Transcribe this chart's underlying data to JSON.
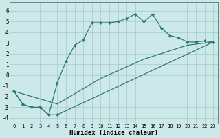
{
  "xlabel": "Humidex (Indice chaleur)",
  "xlim": [
    -0.5,
    23.5
  ],
  "ylim": [
    -4.5,
    6.8
  ],
  "xticks": [
    0,
    1,
    2,
    3,
    4,
    5,
    6,
    7,
    8,
    9,
    10,
    11,
    12,
    13,
    14,
    15,
    16,
    17,
    18,
    19,
    20,
    21,
    22,
    23
  ],
  "yticks": [
    -4,
    -3,
    -2,
    -1,
    0,
    1,
    2,
    3,
    4,
    5,
    6
  ],
  "line_color": "#2a7b6f",
  "bg_color": "#cce8e8",
  "grid_color": "#aacece",
  "line1_x": [
    0,
    1,
    2,
    3,
    4,
    5,
    6,
    7,
    8,
    9,
    10,
    11,
    12,
    13,
    14,
    15,
    16,
    17,
    18,
    19,
    20,
    21,
    22,
    23
  ],
  "line1_y": [
    -1.5,
    -2.7,
    -3.0,
    -3.0,
    -3.7,
    -0.7,
    1.3,
    2.8,
    3.3,
    4.9,
    4.9,
    4.9,
    5.0,
    5.3,
    5.7,
    5.0,
    5.7,
    4.4,
    3.7,
    3.5,
    3.1,
    3.1,
    3.2,
    3.1
  ],
  "line2_x": [
    0,
    5,
    10,
    15,
    20,
    23
  ],
  "line2_y": [
    -1.5,
    -2.7,
    -0.3,
    1.5,
    2.8,
    3.1
  ],
  "line3_x": [
    0,
    1,
    2,
    3,
    4,
    5,
    23
  ],
  "line3_y": [
    -1.5,
    -2.7,
    -3.0,
    -3.0,
    -3.7,
    -3.7,
    3.1
  ]
}
